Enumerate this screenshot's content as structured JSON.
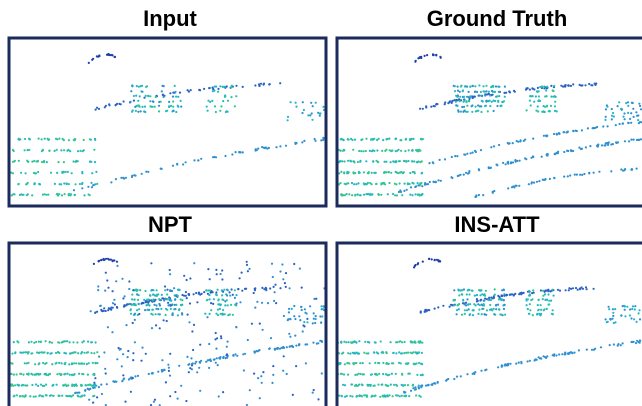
{
  "panels": [
    {
      "title": "Input"
    },
    {
      "title": "Ground Truth"
    },
    {
      "title": "NPT"
    },
    {
      "title": "INS-ATT"
    }
  ]
}
